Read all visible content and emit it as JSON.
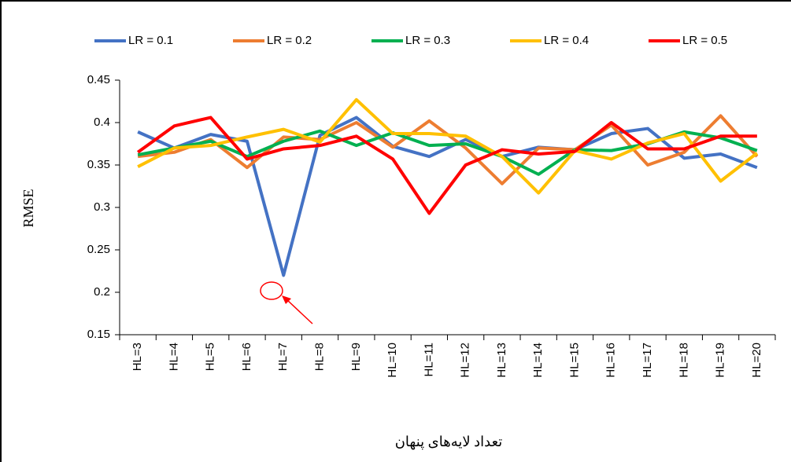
{
  "chart_data": {
    "type": "line",
    "y_label": "RMSE",
    "x_label": "تعداد لایه‌های پنهان",
    "categories": [
      "HL=3",
      "HL=4",
      "HL=5",
      "HL=6",
      "HL=7",
      "HL=8",
      "HL=9",
      "HL=10",
      "HL=11",
      "HL=12",
      "HL=13",
      "HL=14",
      "HL=15",
      "HL=16",
      "HL=17",
      "HL=18",
      "HL=19",
      "HL=20"
    ],
    "ylim": [
      0.15,
      0.45
    ],
    "yticks": [
      0.15,
      0.2,
      0.25,
      0.3,
      0.35,
      0.4,
      0.45
    ],
    "grid": false,
    "legend": "top",
    "series": [
      {
        "name": "LR = 0.1",
        "color": "#4472c4",
        "values": [
          0.389,
          0.37,
          0.386,
          0.378,
          0.22,
          0.385,
          0.406,
          0.372,
          0.36,
          0.38,
          0.36,
          0.371,
          0.368,
          0.387,
          0.393,
          0.358,
          0.363,
          0.347
        ]
      },
      {
        "name": "LR = 0.2",
        "color": "#ed7d31",
        "values": [
          0.36,
          0.365,
          0.38,
          0.347,
          0.383,
          0.38,
          0.4,
          0.371,
          0.402,
          0.37,
          0.328,
          0.37,
          0.368,
          0.397,
          0.35,
          0.365,
          0.408,
          0.36
        ]
      },
      {
        "name": "LR = 0.3",
        "color": "#00b050",
        "values": [
          0.362,
          0.37,
          0.378,
          0.36,
          0.378,
          0.39,
          0.373,
          0.388,
          0.373,
          0.375,
          0.36,
          0.339,
          0.368,
          0.367,
          0.375,
          0.389,
          0.382,
          0.367
        ]
      },
      {
        "name": "LR = 0.4",
        "color": "#ffc000",
        "values": [
          0.348,
          0.37,
          0.373,
          0.383,
          0.392,
          0.377,
          0.427,
          0.387,
          0.387,
          0.384,
          0.36,
          0.317,
          0.367,
          0.357,
          0.376,
          0.387,
          0.331,
          0.364
        ]
      },
      {
        "name": "LR = 0.5",
        "color": "#ff0000",
        "values": [
          0.365,
          0.396,
          0.406,
          0.357,
          0.369,
          0.373,
          0.384,
          0.357,
          0.293,
          0.35,
          0.368,
          0.363,
          0.366,
          0.4,
          0.369,
          0.369,
          0.384,
          0.384
        ]
      }
    ]
  }
}
